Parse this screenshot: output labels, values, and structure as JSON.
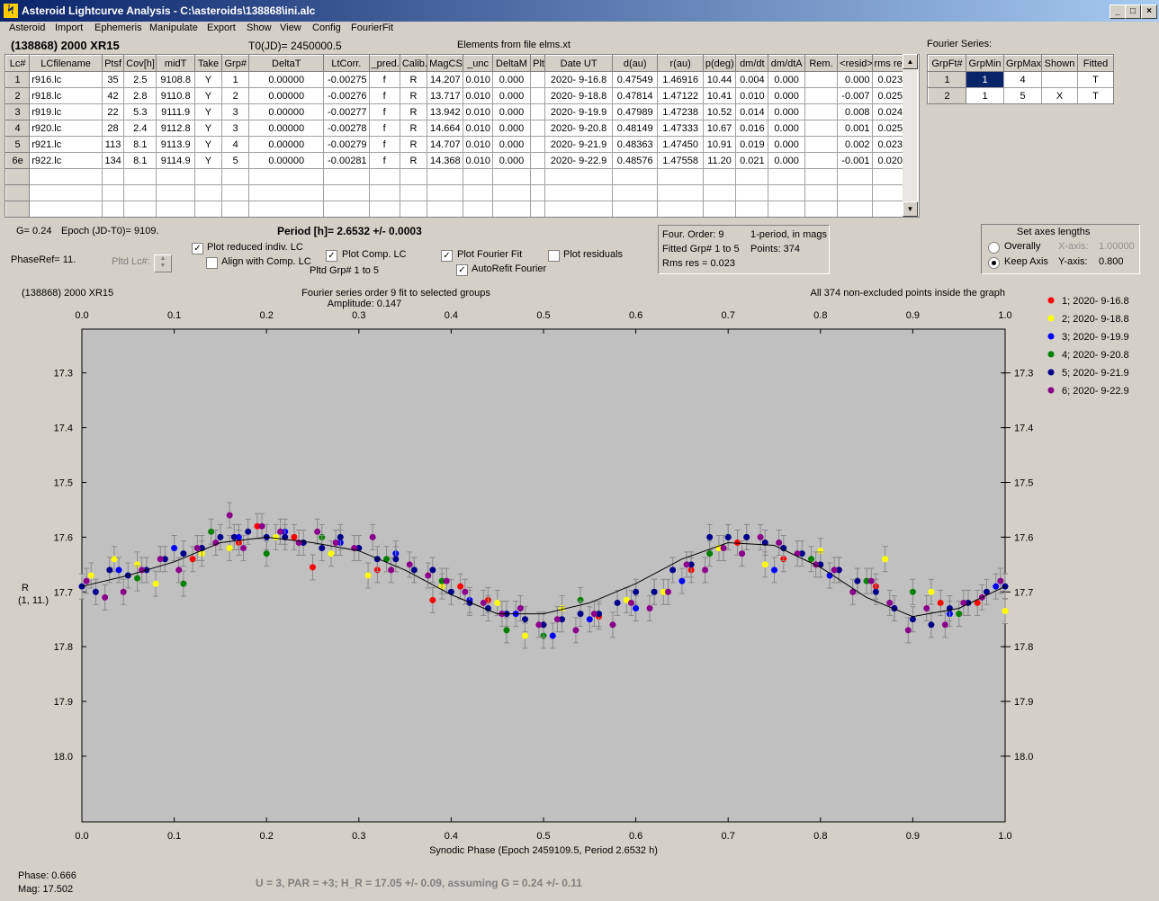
{
  "window": {
    "title": "Asteroid Lightcurve Analysis - C:\\asteroids\\138868\\ini.alc",
    "icon": "app-icon",
    "minimize": "_",
    "maximize": "□",
    "close": "×"
  },
  "menu": [
    "Asteroid",
    "Import",
    "Ephemeris",
    "Manipulate",
    "Export",
    "Show",
    "View",
    "Config",
    "FourierFit"
  ],
  "header": {
    "asteroid": "(138868) 2000 XR15",
    "t0": "T0(JD)= 2450000.5",
    "elements": "Elements from file elms.xt",
    "fourier_series_label": "Fourier Series:"
  },
  "lc_table": {
    "columns": [
      "Lc#",
      "LCfilename",
      "Ptsf",
      "Cov[h]",
      "midT",
      "Take",
      "Grp#",
      "DeltaT",
      "LtCorr.",
      "_pred.",
      "Calib.",
      "MagCS",
      "_unc",
      "DeltaM",
      "Plt",
      "Date UT",
      "d(au)",
      "r(au)",
      "p(deg)",
      "dm/dt",
      "dm/dtA",
      "Rem.",
      "<resid>",
      "rms res"
    ],
    "rows": [
      [
        "1",
        "r916.lc",
        "35",
        "2.5",
        "9108.8",
        "Y",
        "1",
        "0.00000",
        "-0.00275",
        "f",
        "R",
        "14.207",
        "0.010",
        "0.000",
        "",
        "2020- 9-16.8",
        "0.47549",
        "1.46916",
        "10.44",
        "0.004",
        "0.000",
        "",
        "0.000",
        "0.023"
      ],
      [
        "2",
        "r918.lc",
        "42",
        "2.8",
        "9110.8",
        "Y",
        "2",
        "0.00000",
        "-0.00276",
        "f",
        "R",
        "13.717",
        "0.010",
        "0.000",
        "",
        "2020- 9-18.8",
        "0.47814",
        "1.47122",
        "10.41",
        "0.010",
        "0.000",
        "",
        "-0.007",
        "0.025"
      ],
      [
        "3",
        "r919.lc",
        "22",
        "5.3",
        "9111.9",
        "Y",
        "3",
        "0.00000",
        "-0.00277",
        "f",
        "R",
        "13.942",
        "0.010",
        "0.000",
        "",
        "2020- 9-19.9",
        "0.47989",
        "1.47238",
        "10.52",
        "0.014",
        "0.000",
        "",
        "0.008",
        "0.024"
      ],
      [
        "4",
        "r920.lc",
        "28",
        "2.4",
        "9112.8",
        "Y",
        "3",
        "0.00000",
        "-0.00278",
        "f",
        "R",
        "14.664",
        "0.010",
        "0.000",
        "",
        "2020- 9-20.8",
        "0.48149",
        "1.47333",
        "10.67",
        "0.016",
        "0.000",
        "",
        "0.001",
        "0.025"
      ],
      [
        "5",
        "r921.lc",
        "113",
        "8.1",
        "9113.9",
        "Y",
        "4",
        "0.00000",
        "-0.00279",
        "f",
        "R",
        "14.707",
        "0.010",
        "0.000",
        "",
        "2020- 9-21.9",
        "0.48363",
        "1.47450",
        "10.91",
        "0.019",
        "0.000",
        "",
        "0.002",
        "0.023"
      ],
      [
        "6e",
        "r922.lc",
        "134",
        "8.1",
        "9114.9",
        "Y",
        "5",
        "0.00000",
        "-0.00281",
        "f",
        "R",
        "14.368",
        "0.010",
        "0.000",
        "",
        "2020- 9-22.9",
        "0.48576",
        "1.47558",
        "11.20",
        "0.021",
        "0.000",
        "",
        "-0.001",
        "0.020"
      ]
    ]
  },
  "fourier_table": {
    "columns": [
      "GrpFt#",
      "GrpMin",
      "GrpMax",
      "Shown",
      "Fitted"
    ],
    "rows": [
      [
        "1",
        "1",
        "4",
        "",
        "T"
      ],
      [
        "2",
        "1",
        "5",
        "X",
        "T"
      ]
    ]
  },
  "controls": {
    "g": "G= 0.24",
    "epoch": "Epoch (JD-T0)= 9109.",
    "period": "Period [h]= 2.6532 +/- 0.0003",
    "phaseref": "PhaseRef= 11.",
    "pltd_lc": "Pltd Lc#:",
    "plot_reduced": "Plot reduced indiv. LC",
    "align_comp": "Align with Comp. LC",
    "plot_comp": "Plot Comp. LC",
    "pltd_grp": "Pltd Grp#  1   to   5",
    "plot_fourier": "Plot Fourier Fit",
    "autorefit": "AutoRefit Fourier",
    "plot_residuals": "Plot residuals",
    "check_mark": "✓",
    "four_order": "Four. Order:  9",
    "one_period": "1-period, in mags",
    "fitted_grp": "Fitted Grp# 1 to 5",
    "points": "Points: 374",
    "rms_res": "Rms res      = 0.023",
    "axes_title": "Set axes lengths",
    "overally": "Overally",
    "keep_axis": "Keep Axis",
    "x_axis_label": "X-axis:",
    "x_axis_value": "1.00000",
    "y_axis_label": "Y-axis:",
    "y_axis_value": "0.800"
  },
  "status": {
    "phase": "Phase:  0.666",
    "mag": "Mag:    17.502",
    "result": "U = 3, PAR = +3; H_R = 17.05 +/- 0.09, assuming G = 0.24 +/- 0.11"
  },
  "chart_data": {
    "type": "scatter",
    "object_label": "(138868) 2000 XR15",
    "title": "Fourier series order 9 fit to selected groups",
    "subtitle": "Amplitude: 0.147",
    "note": "All 374 non-excluded points inside the graph",
    "xlabel": "Synodic Phase (Epoch 2459109.5, Period 2.6532 h)",
    "ylabel": "R",
    "ylabel2": "(1, 11.)",
    "xlim": [
      0.0,
      1.0
    ],
    "ylim": [
      18.12,
      17.22
    ],
    "x_ticks": [
      "0.0",
      "0.1",
      "0.2",
      "0.3",
      "0.4",
      "0.5",
      "0.6",
      "0.7",
      "0.8",
      "0.9",
      "1.0"
    ],
    "y_ticks": [
      "17.3",
      "17.4",
      "17.5",
      "17.6",
      "17.7",
      "17.8",
      "17.9",
      "18.0"
    ],
    "grid": false,
    "legend_position": "right",
    "fourier_fit": {
      "x": [
        0.0,
        0.05,
        0.1,
        0.15,
        0.2,
        0.25,
        0.3,
        0.35,
        0.4,
        0.45,
        0.5,
        0.55,
        0.6,
        0.65,
        0.7,
        0.75,
        0.8,
        0.85,
        0.9,
        0.95,
        1.0
      ],
      "y": [
        17.69,
        17.67,
        17.645,
        17.61,
        17.6,
        17.61,
        17.625,
        17.66,
        17.705,
        17.74,
        17.74,
        17.72,
        17.685,
        17.64,
        17.61,
        17.615,
        17.655,
        17.71,
        17.745,
        17.73,
        17.69
      ]
    },
    "series": [
      {
        "name": "1; 2020- 9-16.8",
        "color": "#ff0000",
        "x": [
          0.12,
          0.17,
          0.19,
          0.23,
          0.25,
          0.32,
          0.38,
          0.41,
          0.44,
          0.5,
          0.56,
          0.66,
          0.71,
          0.76,
          0.82,
          0.86,
          0.93,
          0.97
        ],
        "y": [
          17.64,
          17.61,
          17.58,
          17.6,
          17.655,
          17.66,
          17.715,
          17.69,
          17.715,
          17.76,
          17.745,
          17.66,
          17.61,
          17.64,
          17.66,
          17.69,
          17.72,
          17.72
        ]
      },
      {
        "name": "2; 2020- 9-18.8",
        "color": "#ffff00",
        "x": [
          0.01,
          0.035,
          0.06,
          0.08,
          0.13,
          0.16,
          0.21,
          0.27,
          0.31,
          0.36,
          0.39,
          0.45,
          0.48,
          0.52,
          0.59,
          0.63,
          0.69,
          0.74,
          0.8,
          0.84,
          0.87,
          0.92,
          0.96,
          1.0
        ],
        "y": [
          17.67,
          17.64,
          17.65,
          17.685,
          17.63,
          17.62,
          17.6,
          17.63,
          17.67,
          17.66,
          17.69,
          17.72,
          17.78,
          17.73,
          17.715,
          17.7,
          17.62,
          17.65,
          17.625,
          17.68,
          17.64,
          17.7,
          17.72,
          17.735
        ]
      },
      {
        "name": "3; 2020- 9-19.9",
        "color": "#0000ff",
        "x": [
          0.04,
          0.1,
          0.17,
          0.22,
          0.28,
          0.34,
          0.42,
          0.47,
          0.51,
          0.55,
          0.6,
          0.65,
          0.7,
          0.75,
          0.81,
          0.88,
          0.94,
          0.99
        ],
        "y": [
          17.66,
          17.62,
          17.6,
          17.59,
          17.61,
          17.63,
          17.715,
          17.74,
          17.78,
          17.75,
          17.73,
          17.68,
          17.6,
          17.66,
          17.67,
          17.73,
          17.74,
          17.69
        ]
      },
      {
        "name": "4; 2020- 9-20.8",
        "color": "#008000",
        "x": [
          0.06,
          0.11,
          0.14,
          0.2,
          0.26,
          0.33,
          0.39,
          0.46,
          0.5,
          0.54,
          0.62,
          0.68,
          0.72,
          0.79,
          0.85,
          0.9,
          0.95
        ],
        "y": [
          17.675,
          17.685,
          17.59,
          17.63,
          17.6,
          17.64,
          17.68,
          17.77,
          17.78,
          17.715,
          17.7,
          17.63,
          17.6,
          17.64,
          17.68,
          17.7,
          17.74
        ]
      },
      {
        "name": "5; 2020- 9-21.9",
        "color": "#00008b",
        "x": [
          0.0,
          0.015,
          0.03,
          0.05,
          0.07,
          0.09,
          0.11,
          0.13,
          0.15,
          0.165,
          0.18,
          0.2,
          0.22,
          0.24,
          0.26,
          0.28,
          0.3,
          0.32,
          0.34,
          0.36,
          0.38,
          0.4,
          0.42,
          0.44,
          0.46,
          0.48,
          0.5,
          0.52,
          0.54,
          0.56,
          0.58,
          0.6,
          0.62,
          0.64,
          0.66,
          0.68,
          0.7,
          0.72,
          0.74,
          0.76,
          0.78,
          0.8,
          0.82,
          0.84,
          0.86,
          0.88,
          0.9,
          0.92,
          0.94,
          0.96,
          0.98,
          1.0
        ],
        "y": [
          17.69,
          17.7,
          17.66,
          17.67,
          17.66,
          17.64,
          17.63,
          17.62,
          17.6,
          17.6,
          17.59,
          17.6,
          17.6,
          17.61,
          17.62,
          17.6,
          17.62,
          17.64,
          17.64,
          17.66,
          17.66,
          17.7,
          17.72,
          17.73,
          17.74,
          17.75,
          17.76,
          17.75,
          17.74,
          17.74,
          17.72,
          17.7,
          17.7,
          17.66,
          17.65,
          17.6,
          17.6,
          17.6,
          17.61,
          17.62,
          17.63,
          17.65,
          17.66,
          17.68,
          17.7,
          17.73,
          17.75,
          17.76,
          17.73,
          17.72,
          17.7,
          17.69
        ]
      },
      {
        "name": "6; 2020- 9-22.9",
        "color": "#8b008b",
        "x": [
          0.005,
          0.025,
          0.045,
          0.065,
          0.085,
          0.105,
          0.125,
          0.145,
          0.16,
          0.175,
          0.195,
          0.215,
          0.235,
          0.255,
          0.275,
          0.295,
          0.315,
          0.335,
          0.355,
          0.375,
          0.395,
          0.415,
          0.435,
          0.455,
          0.475,
          0.495,
          0.515,
          0.535,
          0.555,
          0.575,
          0.595,
          0.615,
          0.635,
          0.655,
          0.675,
          0.695,
          0.715,
          0.735,
          0.755,
          0.775,
          0.795,
          0.815,
          0.835,
          0.855,
          0.875,
          0.895,
          0.915,
          0.935,
          0.955,
          0.975,
          0.995
        ],
        "y": [
          17.68,
          17.71,
          17.7,
          17.66,
          17.64,
          17.66,
          17.62,
          17.61,
          17.56,
          17.62,
          17.58,
          17.59,
          17.61,
          17.59,
          17.61,
          17.62,
          17.6,
          17.66,
          17.65,
          17.67,
          17.68,
          17.7,
          17.72,
          17.74,
          17.73,
          17.76,
          17.75,
          17.77,
          17.74,
          17.76,
          17.72,
          17.73,
          17.7,
          17.65,
          17.66,
          17.62,
          17.63,
          17.6,
          17.61,
          17.63,
          17.65,
          17.66,
          17.7,
          17.68,
          17.72,
          17.77,
          17.73,
          17.76,
          17.72,
          17.71,
          17.68
        ]
      }
    ]
  }
}
